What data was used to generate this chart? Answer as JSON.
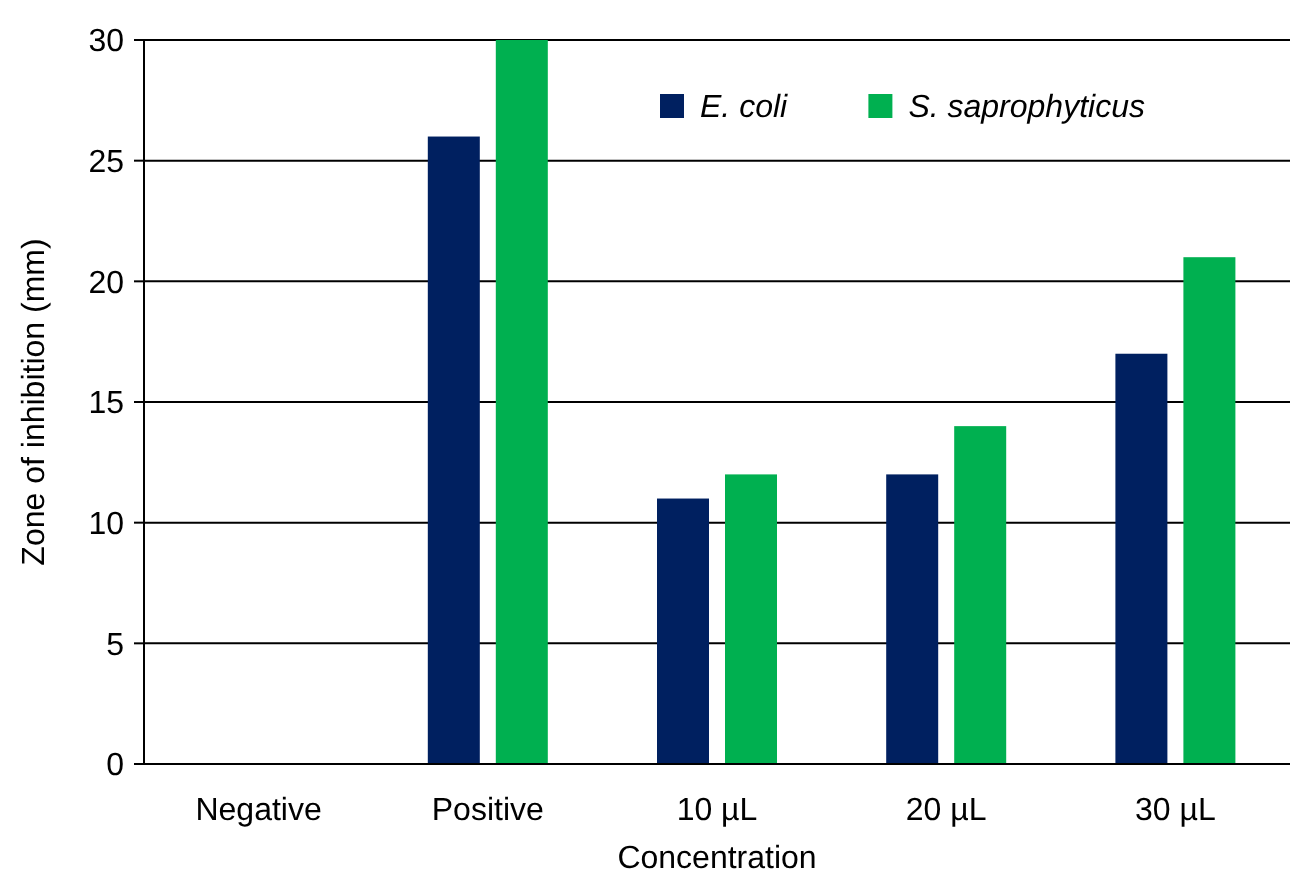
{
  "chart_data": {
    "type": "bar",
    "xlabel": "Concentration",
    "ylabel": "Zone of inhibition (mm)",
    "categories": [
      "Negative",
      "Positive",
      "10 µL",
      "20 µL",
      "30 µL"
    ],
    "series": [
      {
        "name": "E. coli",
        "color": "#002060",
        "values": [
          0,
          26,
          11,
          12,
          17
        ]
      },
      {
        "name": "S. saprophyticus",
        "color": "#00b050",
        "values": [
          0,
          30,
          12,
          14,
          21
        ]
      }
    ],
    "ylim": [
      0,
      30
    ],
    "yticks": [
      0,
      5,
      10,
      15,
      20,
      25,
      30
    ],
    "grid": "y",
    "legend": "top right"
  }
}
